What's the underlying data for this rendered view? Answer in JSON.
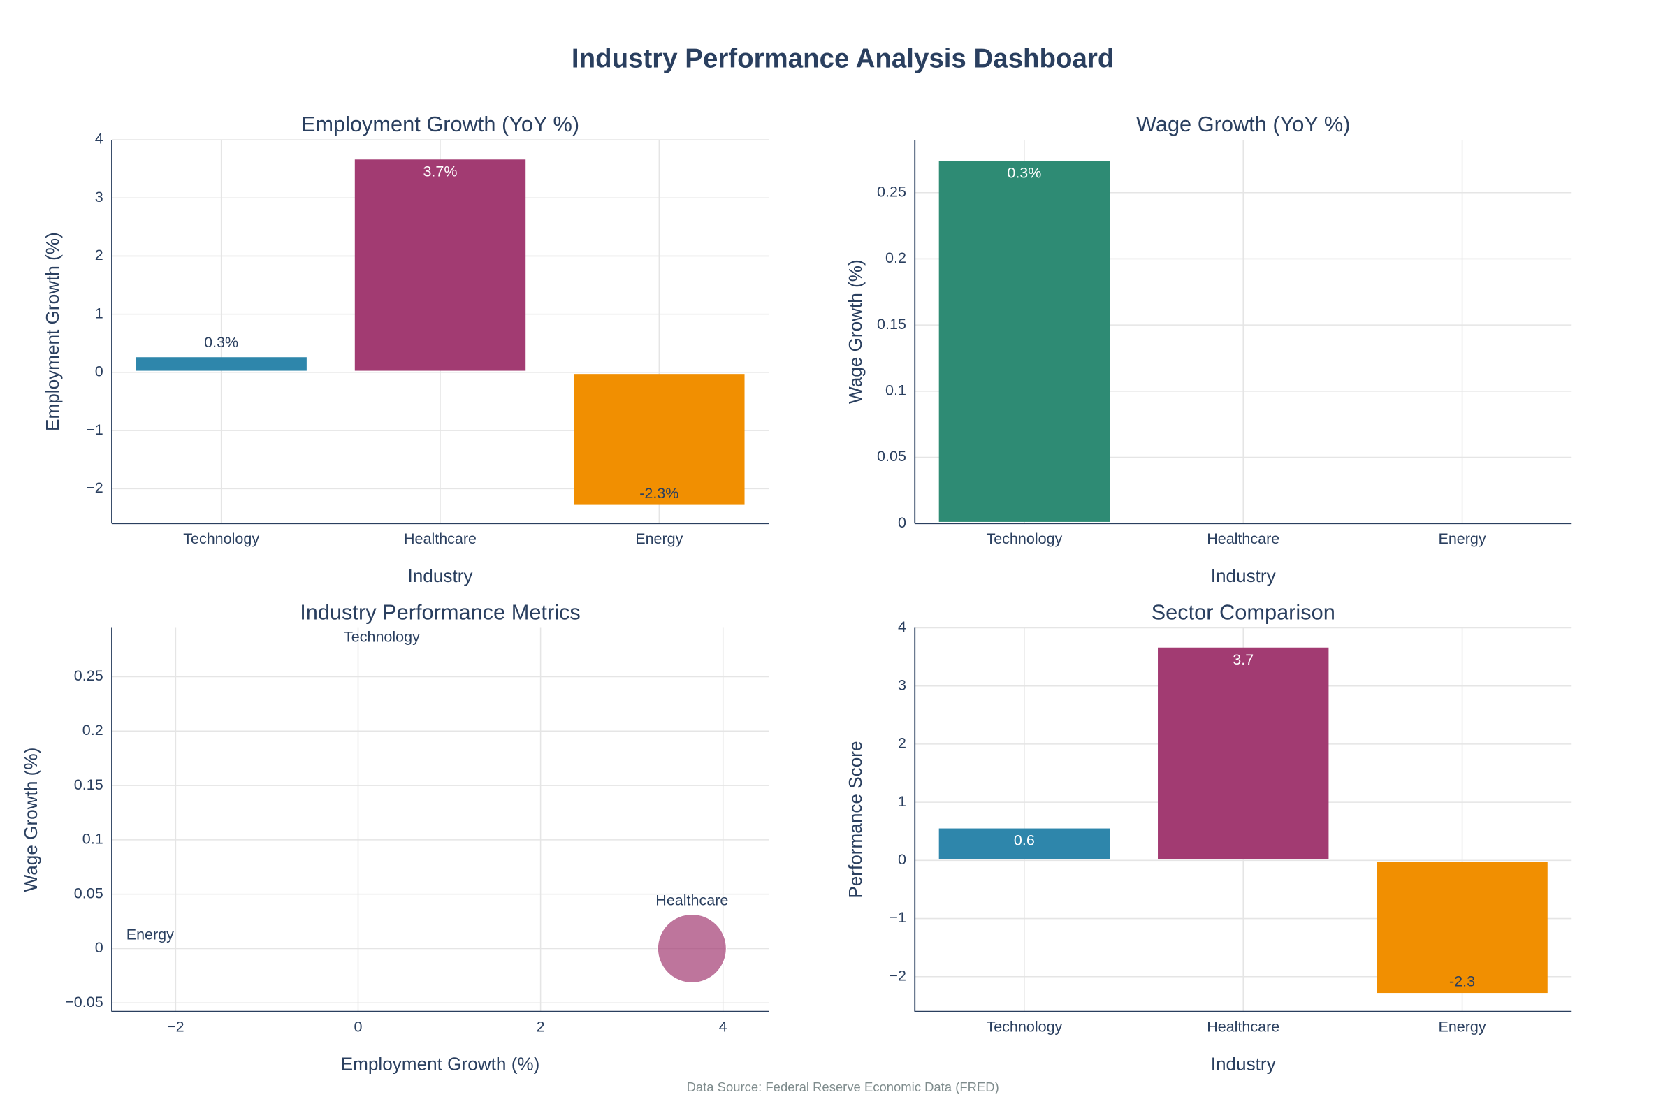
{
  "title": "Industry Performance Analysis Dashboard",
  "source": "Data Source: Federal Reserve Economic Data (FRED)",
  "chart_data": [
    {
      "type": "bar",
      "title": "Employment Growth (YoY %)",
      "x_label": "Industry",
      "y_label": "Employment Growth (%)",
      "categories": [
        "Technology",
        "Healthcare",
        "Energy"
      ],
      "values": [
        0.26,
        3.66,
        -2.28
      ],
      "value_labels": [
        "0.3%",
        "3.7%",
        "-2.3%"
      ],
      "colors": [
        "#2e86ab",
        "#a23b72",
        "#f18f01"
      ],
      "ylim": [
        -2.6,
        4
      ],
      "yticks": [
        {
          "value": -2,
          "label": "−2"
        },
        {
          "value": -1,
          "label": "−1"
        },
        0,
        1,
        2,
        3,
        4
      ],
      "grid": true
    },
    {
      "type": "bar",
      "title": "Wage Growth (YoY %)",
      "x_label": "Industry",
      "y_label": "Wage Growth (%)",
      "categories": [
        "Technology",
        "Healthcare",
        "Energy"
      ],
      "values": [
        0.274,
        null,
        null
      ],
      "value_labels": [
        "0.3%",
        null,
        null
      ],
      "colors": [
        "#2e8b74",
        "#2e8b74",
        "#2e8b74"
      ],
      "ylim": [
        0,
        0.29
      ],
      "yticks": [
        0,
        0.05,
        0.1,
        0.15,
        0.2,
        0.25
      ],
      "grid": true
    },
    {
      "type": "scatter",
      "title": "Industry Performance Metrics",
      "x_label": "Employment Growth (%)",
      "y_label": "Wage Growth (%)",
      "labels": [
        "Technology",
        "Healthcare",
        "Energy"
      ],
      "x": [
        0.26,
        3.66,
        -2.28
      ],
      "y": [
        0.274,
        0,
        0
      ],
      "sizes": [
        0,
        3.66,
        0
      ],
      "color": "#a23b72",
      "xlim": [
        -2.7,
        4.5
      ],
      "xticks": [
        {
          "value": -2,
          "label": "−2"
        },
        0,
        2,
        4
      ],
      "ylim": [
        -0.058,
        0.295
      ],
      "yticks": [
        {
          "value": -0.05,
          "label": "−0.05"
        },
        0,
        0.05,
        0.1,
        0.15,
        0.2,
        0.25
      ],
      "grid": true
    },
    {
      "type": "bar",
      "title": "Sector Comparison",
      "x_label": "Industry",
      "y_label": "Performance Score",
      "categories": [
        "Technology",
        "Healthcare",
        "Energy"
      ],
      "values": [
        0.55,
        3.66,
        -2.28
      ],
      "value_labels": [
        "0.6",
        "3.7",
        "-2.3"
      ],
      "colors": [
        "#2e86ab",
        "#a23b72",
        "#f18f01"
      ],
      "ylim": [
        -2.6,
        4
      ],
      "yticks": [
        {
          "value": -2,
          "label": "−2"
        },
        {
          "value": -1,
          "label": "−1"
        },
        0,
        1,
        2,
        3,
        4
      ],
      "grid": true
    }
  ]
}
